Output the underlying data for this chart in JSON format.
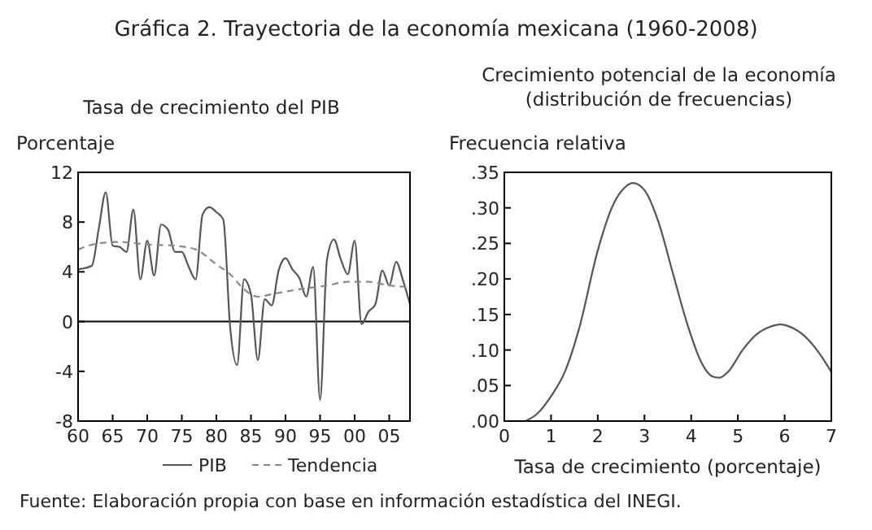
{
  "chart_data": [
    {
      "type": "line",
      "title": "Tasa de crecimiento del PIB",
      "ylabel": "Porcentaje",
      "annotations": [
        "Gráfica 2. Trayectoria de la economía mexicana (1960-2008)",
        "Fuente: Elaboración propia con base en información estadística del INEGI."
      ],
      "x": [
        1960,
        1961,
        1962,
        1963,
        1964,
        1965,
        1966,
        1967,
        1968,
        1969,
        1970,
        1971,
        1972,
        1973,
        1974,
        1975,
        1976,
        1977,
        1978,
        1979,
        1980,
        1981,
        1982,
        1983,
        1984,
        1985,
        1986,
        1987,
        1988,
        1989,
        1990,
        1991,
        1992,
        1993,
        1994,
        1995,
        1996,
        1997,
        1998,
        1999,
        2000,
        2001,
        2002,
        2003,
        2004,
        2005,
        2006,
        2007,
        2008
      ],
      "series": [
        {
          "name": "PIB",
          "color": "#555555",
          "line_style": "solid",
          "values": [
            4.2,
            4.3,
            4.5,
            7.5,
            10.4,
            6.1,
            6.0,
            5.6,
            9.0,
            3.4,
            6.5,
            3.7,
            7.8,
            7.4,
            5.6,
            5.6,
            4.4,
            3.4,
            8.6,
            9.2,
            8.8,
            8.2,
            -0.5,
            -3.5,
            3.4,
            2.2,
            -3.1,
            1.8,
            1.3,
            4.1,
            5.1,
            4.2,
            3.5,
            2.0,
            4.4,
            -6.3,
            5.0,
            6.6,
            5.0,
            3.8,
            6.5,
            -0.2,
            0.8,
            1.4,
            4.1,
            2.9,
            4.8,
            3.3,
            1.4
          ]
        },
        {
          "name": "Tendencia",
          "color": "#888888",
          "line_style": "dashed",
          "x": [
            1960,
            1963,
            1966,
            1970,
            1974,
            1977,
            1980,
            1982,
            1984,
            1986,
            1988,
            1992,
            1996,
            1999,
            2002,
            2005,
            2008
          ],
          "values": [
            5.8,
            6.3,
            6.4,
            6.2,
            6.1,
            5.8,
            4.6,
            3.8,
            2.6,
            2.0,
            2.2,
            2.6,
            2.9,
            3.2,
            3.2,
            2.9,
            2.8
          ]
        }
      ],
      "xlim": [
        1960,
        2008
      ],
      "xticks": [
        {
          "value": 1960,
          "label": "60"
        },
        {
          "value": 1965,
          "label": "65"
        },
        {
          "value": 1970,
          "label": "70"
        },
        {
          "value": 1975,
          "label": "75"
        },
        {
          "value": 1980,
          "label": "80"
        },
        {
          "value": 1985,
          "label": "85"
        },
        {
          "value": 1990,
          "label": "90"
        },
        {
          "value": 1995,
          "label": "95"
        },
        {
          "value": 2000,
          "label": "00"
        },
        {
          "value": 2005,
          "label": "05"
        }
      ],
      "ylim": [
        -8,
        12
      ],
      "yticks": [
        -8,
        -4,
        0,
        4,
        8,
        12
      ],
      "ref_lines": [
        {
          "axis": "y",
          "value": 0,
          "color": "#000000"
        }
      ],
      "legend": "bottom",
      "grid": false
    },
    {
      "type": "line",
      "title": "Crecimiento potencial de la economía",
      "subtitle": "(distribución de frecuencias)",
      "ylabel": "Frecuencia relativa",
      "xlabel": "Tasa de crecimiento (porcentaje)",
      "x": [
        0.45,
        0.7,
        1.0,
        1.3,
        1.6,
        2.0,
        2.3,
        2.6,
        2.75,
        3.0,
        3.3,
        3.6,
        3.9,
        4.2,
        4.45,
        4.6,
        4.8,
        5.1,
        5.4,
        5.7,
        5.9,
        6.2,
        6.5,
        6.8,
        7.0
      ],
      "series": [
        {
          "color": "#555555",
          "values": [
            0,
            0.01,
            0.035,
            0.07,
            0.13,
            0.24,
            0.3,
            0.33,
            0.335,
            0.325,
            0.28,
            0.21,
            0.14,
            0.085,
            0.063,
            0.061,
            0.07,
            0.1,
            0.122,
            0.133,
            0.136,
            0.13,
            0.115,
            0.09,
            0.069
          ]
        }
      ],
      "xlim": [
        0,
        7
      ],
      "xticks": [
        0,
        1,
        2,
        3,
        4,
        5,
        6,
        7
      ],
      "ylim": [
        0,
        0.35
      ],
      "yticks": [
        {
          "value": 0,
          "label": ".00"
        },
        {
          "value": 0.05,
          "label": ".05"
        },
        {
          "value": 0.1,
          "label": ".10"
        },
        {
          "value": 0.15,
          "label": ".15"
        },
        {
          "value": 0.2,
          "label": ".20"
        },
        {
          "value": 0.25,
          "label": ".25"
        },
        {
          "value": 0.3,
          "label": ".30"
        },
        {
          "value": 0.35,
          "label": ".35"
        }
      ],
      "legend": false,
      "grid": false
    }
  ]
}
